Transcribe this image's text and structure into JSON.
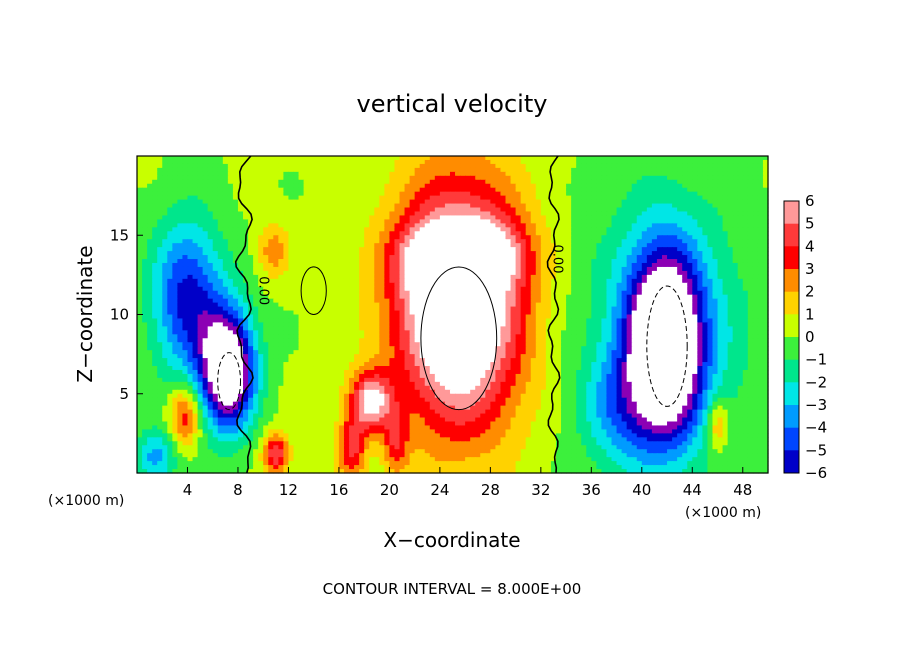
{
  "chart_data": {
    "type": "heatmap",
    "title": "vertical velocity",
    "xlabel": "X−coordinate",
    "ylabel": "Z−coordinate",
    "x_unit_left": "(×1000 m)",
    "x_unit_right": "(×1000 m)",
    "footer": "CONTOUR INTERVAL = 8.000E+00",
    "xlim": [
      0,
      50
    ],
    "ylim": [
      0,
      20
    ],
    "x_ticks": [
      4,
      8,
      12,
      16,
      20,
      24,
      28,
      32,
      36,
      40,
      44,
      48
    ],
    "x_tick_labels": [
      "4",
      "8",
      "12",
      "16",
      "20",
      "24",
      "28",
      "32",
      "36",
      "40",
      "44",
      "48"
    ],
    "y_ticks": [
      5,
      10,
      15
    ],
    "y_tick_labels": [
      "5",
      "10",
      "15"
    ],
    "contour_labels": [
      "0.00",
      "0.00"
    ],
    "colorbar": {
      "levels": [
        6,
        5,
        4,
        3,
        2,
        1,
        0,
        -1,
        -2,
        -3,
        -4,
        -5,
        -6
      ],
      "labels": [
        "6",
        "5",
        "4",
        "3",
        "2",
        "1",
        "0",
        "−1",
        "−2",
        "−3",
        "−4",
        "−5",
        "−6"
      ],
      "colors": [
        "#ff9999",
        "#ff3a3a",
        "#ff0000",
        "#ff8c00",
        "#ffd200",
        "#c8ff00",
        "#3cf03c",
        "#00e68c",
        "#00e6e6",
        "#009bff",
        "#0046ff",
        "#0000c8",
        "#8c00b4"
      ],
      "over_color": "#ffffff"
    },
    "features": [
      {
        "name": "updraft-core",
        "cx": 25.5,
        "cy": 10.5,
        "sx": 3.6,
        "sy": 5.5,
        "amp": 9.5
      },
      {
        "name": "updraft-lobe-upper-left",
        "cx": 23.0,
        "cy": 13.5,
        "sx": 2.0,
        "sy": 1.6,
        "amp": 3.0
      },
      {
        "name": "updraft-lobe-upper-right",
        "cx": 28.5,
        "cy": 13.8,
        "sx": 2.0,
        "sy": 1.5,
        "amp": 3.0
      },
      {
        "name": "updraft-leftwing",
        "cx": 18.5,
        "cy": 4.5,
        "sx": 1.2,
        "sy": 1.3,
        "amp": 6.0
      },
      {
        "name": "updraft-small-left",
        "cx": 10.8,
        "cy": 14.0,
        "sx": 0.9,
        "sy": 1.2,
        "amp": 2.5
      },
      {
        "name": "updraft-bottom-11",
        "cx": 11.0,
        "cy": 1.2,
        "sx": 0.7,
        "sy": 0.9,
        "amp": 5.0
      },
      {
        "name": "updraft-bottom-17",
        "cx": 17.0,
        "cy": 1.5,
        "sx": 0.8,
        "sy": 1.4,
        "amp": 4.0
      },
      {
        "name": "updraft-bottom-20",
        "cx": 20.5,
        "cy": 1.8,
        "sx": 0.7,
        "sy": 1.4,
        "amp": 3.0
      },
      {
        "name": "updraft-left-4",
        "cx": 3.8,
        "cy": 3.6,
        "sx": 0.9,
        "sy": 1.4,
        "amp": 4.0
      },
      {
        "name": "downdraft-left",
        "cx": 7.2,
        "cy": 6.5,
        "sx": 1.5,
        "sy": 2.6,
        "amp": -10.0
      },
      {
        "name": "downdraft-left-upper",
        "cx": 4.0,
        "cy": 11.0,
        "sx": 2.0,
        "sy": 3.5,
        "amp": -5.5
      },
      {
        "name": "downdraft-right",
        "cx": 41.8,
        "cy": 8.0,
        "sx": 2.0,
        "sy": 4.0,
        "amp": -10.5
      },
      {
        "name": "downdraft-right-wide",
        "cx": 42.0,
        "cy": 9.0,
        "sx": 4.5,
        "sy": 6.0,
        "amp": -3.0
      },
      {
        "name": "downdraft-right-lower",
        "cx": 38.0,
        "cy": 4.0,
        "sx": 2.0,
        "sy": 2.5,
        "amp": -2.5
      },
      {
        "name": "downdraft-bottom-left",
        "cx": 1.5,
        "cy": 1.0,
        "sx": 1.2,
        "sy": 1.2,
        "amp": -3.5
      },
      {
        "name": "updraft-right-46",
        "cx": 46.0,
        "cy": 3.0,
        "sx": 0.6,
        "sy": 1.2,
        "amp": 3.0
      }
    ]
  }
}
